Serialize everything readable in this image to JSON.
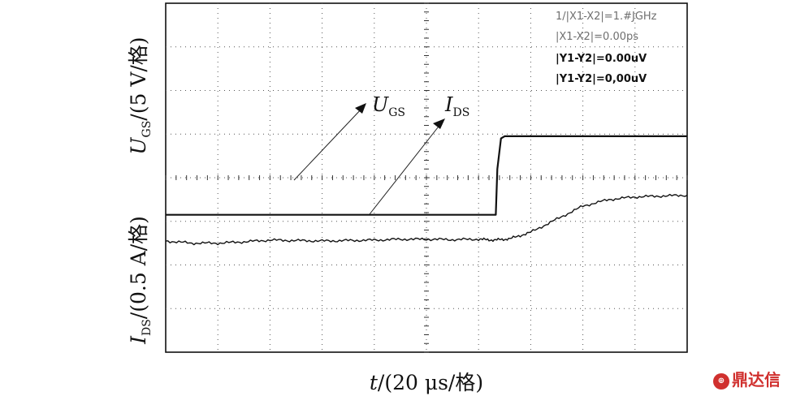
{
  "chart_data": {
    "type": "line",
    "title": "",
    "grid": true,
    "ylabel_upper": {
      "sym": "U",
      "sub": "GS",
      "rest": "/(5 V/格)"
    },
    "ylabel_lower": {
      "sym": "I",
      "sub": "DS",
      "rest": "/(0.5 A/格)"
    },
    "xlabel": {
      "sym": "t",
      "rest": "/(20 μs/格)"
    },
    "xlim_divisions": [
      0,
      10
    ],
    "ylim_divisions": [
      0,
      8
    ],
    "cursor_readout": [
      "1/|X1-X2|=1.#JGHz",
      "|X1-X2|=0.00ps",
      "|Y1-Y2|=0.00uV",
      "|Y1-Y2|=0,00uV"
    ],
    "annotations": [
      {
        "sym": "U",
        "sub": "GS"
      },
      {
        "sym": "I",
        "sub": "DS"
      }
    ],
    "series": [
      {
        "name": "UGS",
        "x": [
          0,
          6.33,
          6.36,
          6.43,
          6.5,
          10
        ],
        "y": [
          3.15,
          3.15,
          4.2,
          4.9,
          4.95,
          4.95
        ]
      },
      {
        "name": "IDS",
        "x": [
          0,
          0.5,
          1.0,
          1.5,
          2.0,
          2.5,
          3.0,
          3.5,
          4.0,
          4.5,
          5.0,
          5.5,
          6.0,
          6.3,
          6.6,
          7.0,
          7.5,
          8.0,
          8.5,
          9.0,
          9.5,
          10
        ],
        "y": [
          2.55,
          2.5,
          2.5,
          2.53,
          2.57,
          2.56,
          2.55,
          2.56,
          2.57,
          2.59,
          2.59,
          2.58,
          2.59,
          2.57,
          2.6,
          2.75,
          3.05,
          3.35,
          3.5,
          3.56,
          3.58,
          3.6
        ]
      }
    ],
    "logo_text": "鼎达信"
  }
}
